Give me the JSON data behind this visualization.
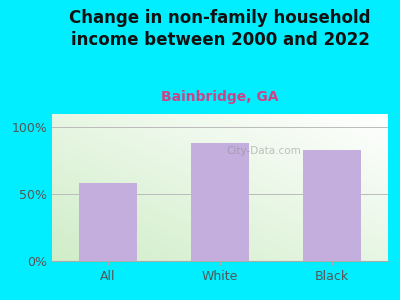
{
  "title": "Change in non-family household\nincome between 2000 and 2022",
  "subtitle": "Bainbridge, GA",
  "categories": [
    "All",
    "White",
    "Black"
  ],
  "values": [
    58,
    88,
    83
  ],
  "bar_color": "#c4aedd",
  "title_fontsize": 12,
  "subtitle_fontsize": 10,
  "subtitle_color": "#cc4488",
  "title_color": "#111111",
  "background_color": "#00eeff",
  "yticks": [
    0,
    50,
    100
  ],
  "ytick_labels": [
    "0%",
    "50%",
    "100%"
  ],
  "ylim": [
    0,
    110
  ],
  "watermark": "City-Data.com",
  "tick_fontsize": 9,
  "tick_color": "#555555"
}
